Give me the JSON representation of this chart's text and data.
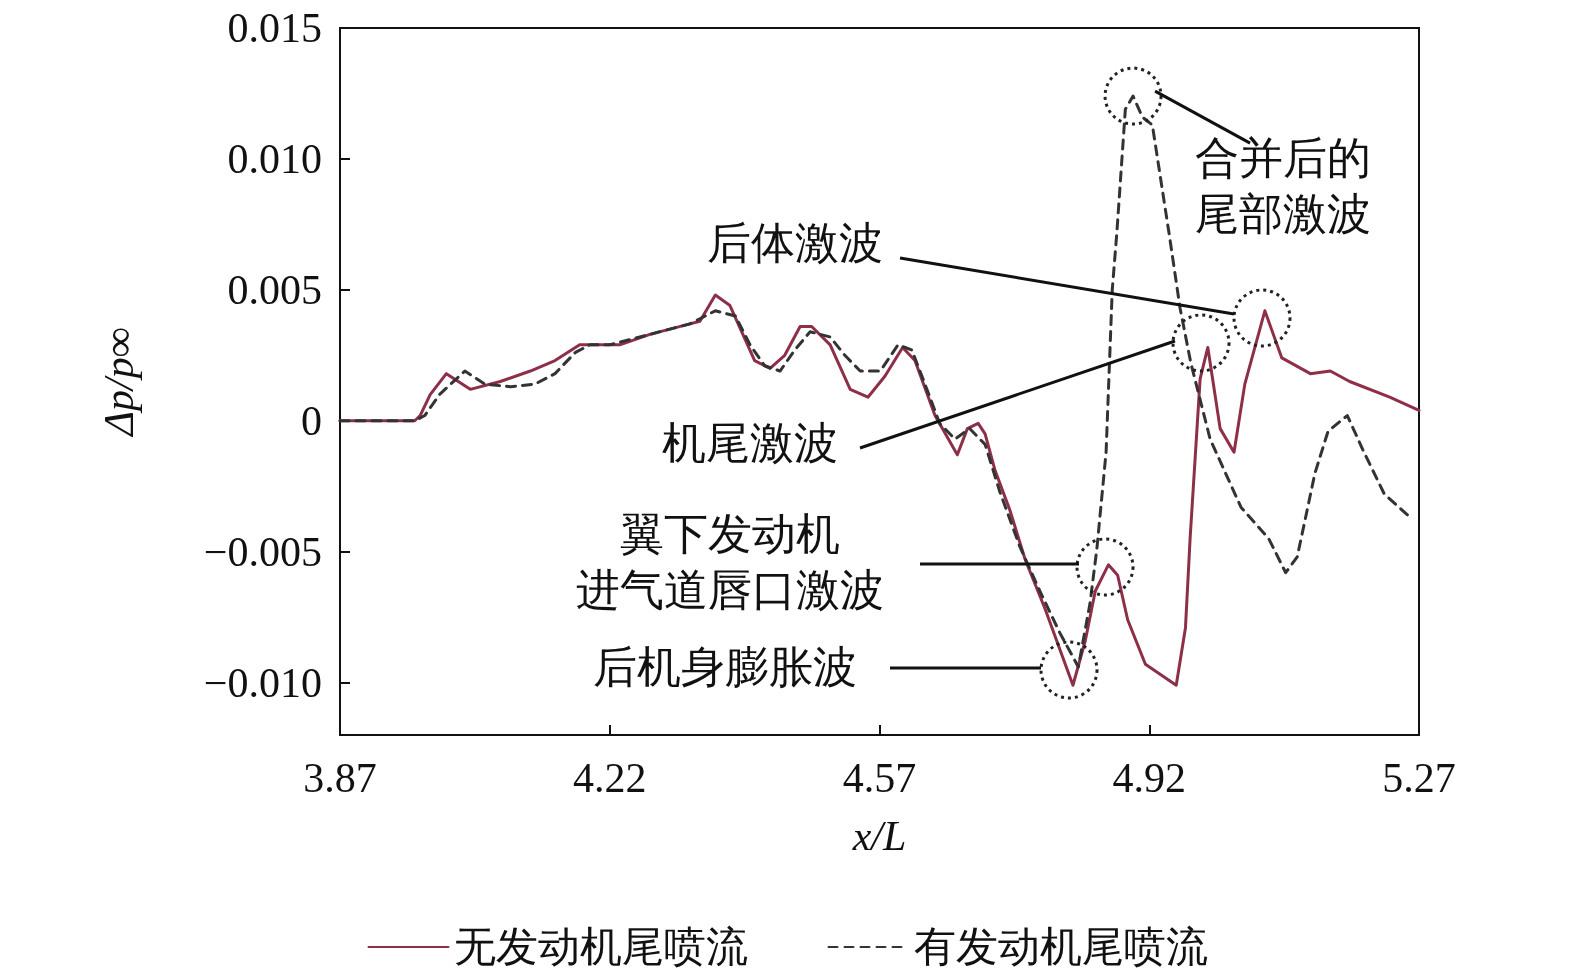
{
  "chart_data": {
    "type": "line",
    "xlabel": "x/L",
    "ylabel": "Δp/p∞",
    "xlim": [
      3.87,
      5.27
    ],
    "xticks": [
      3.87,
      4.22,
      4.57,
      4.92,
      5.27
    ],
    "ylim": [
      -0.012,
      0.015
    ],
    "yticks": [
      {
        "value": -0.01,
        "label": "−0.010"
      },
      {
        "value": -0.005,
        "label": "−0.005"
      },
      0,
      {
        "value": 0.005,
        "label": "0.005"
      },
      {
        "value": 0.01,
        "label": "0.010"
      },
      {
        "value": 0.015,
        "label": "0.015"
      }
    ],
    "grid": false,
    "legend": "bottom",
    "marker": "none",
    "series": [
      {
        "name": "无发动机尾喷流",
        "color": "#8e2f48",
        "line_style": "solid",
        "x": [
          3.87,
          3.967,
          3.974,
          3.987,
          4.008,
          4.039,
          4.078,
          4.117,
          4.149,
          4.181,
          4.205,
          4.233,
          4.272,
          4.324,
          4.337,
          4.357,
          4.376,
          4.408,
          4.428,
          4.447,
          4.467,
          4.482,
          4.506,
          4.532,
          4.555,
          4.577,
          4.6,
          4.616,
          4.642,
          4.671,
          4.684,
          4.698,
          4.707,
          4.72,
          4.739,
          4.759,
          4.785,
          4.821,
          4.837,
          4.85,
          4.867,
          4.879,
          4.892,
          4.915,
          4.955,
          4.967,
          4.973,
          4.986,
          4.996,
          5.012,
          5.03,
          5.044,
          5.07,
          5.092,
          5.129,
          5.155,
          5.18,
          5.232,
          5.27
        ],
        "values": [
          0,
          0,
          0.0002,
          0.001,
          0.0018,
          0.0012,
          0.0015,
          0.0019,
          0.0023,
          0.0029,
          0.0029,
          0.0029,
          0.0033,
          0.0037,
          0.0038,
          0.0048,
          0.0044,
          0.0023,
          0.002,
          0.0025,
          0.0036,
          0.0036,
          0.0029,
          0.0012,
          0.0009,
          0.0017,
          0.0028,
          0.0023,
          0.0002,
          -0.0013,
          -0.0003,
          -0.0001,
          -0.0005,
          -0.0019,
          -0.0034,
          -0.0053,
          -0.0072,
          -0.0101,
          -0.0084,
          -0.0065,
          -0.0055,
          -0.0059,
          -0.0076,
          -0.0093,
          -0.0101,
          -0.0079,
          -0.0045,
          0.0016,
          0.0028,
          -0.0003,
          -0.0012,
          0.0014,
          0.0042,
          0.0024,
          0.0018,
          0.0019,
          0.0015,
          0.0009,
          0.0004
        ]
      },
      {
        "name": "有发动机尾喷流",
        "color": "#333333",
        "line_style": "dashed",
        "x": [
          3.87,
          3.967,
          3.98,
          3.999,
          4.032,
          4.058,
          4.091,
          4.123,
          4.149,
          4.175,
          4.194,
          4.22,
          4.259,
          4.324,
          4.357,
          4.383,
          4.402,
          4.421,
          4.441,
          4.46,
          4.48,
          4.506,
          4.525,
          4.545,
          4.571,
          4.594,
          4.612,
          4.629,
          4.648,
          4.668,
          4.687,
          4.707,
          4.726,
          4.752,
          4.778,
          4.804,
          4.828,
          4.843,
          4.852,
          4.864,
          4.872,
          4.878,
          4.889,
          4.899,
          4.911,
          4.924,
          4.946,
          4.96,
          4.974,
          4.999,
          5.039,
          5.075,
          5.097,
          5.112,
          5.135,
          5.152,
          5.177,
          5.197,
          5.225,
          5.259
        ],
        "values": [
          0,
          0,
          0.0002,
          0.001,
          0.0019,
          0.0014,
          0.0013,
          0.0014,
          0.0018,
          0.0026,
          0.0029,
          0.0029,
          0.0032,
          0.0037,
          0.0042,
          0.004,
          0.0029,
          0.0021,
          0.0019,
          0.0027,
          0.0034,
          0.0032,
          0.0025,
          0.0019,
          0.0019,
          0.0029,
          0.0027,
          0.0014,
          -0.0001,
          -0.0007,
          -0.0003,
          -0.0009,
          -0.0027,
          -0.0048,
          -0.0065,
          -0.0081,
          -0.0094,
          -0.007,
          -0.0049,
          -0.0012,
          0.005,
          0.0072,
          0.0119,
          0.0124,
          0.0116,
          0.0113,
          0.0071,
          0.0043,
          0.0022,
          -0.0007,
          -0.0033,
          -0.0045,
          -0.0058,
          -0.0052,
          -0.002,
          -0.0004,
          0.0002,
          -0.0011,
          -0.0028,
          -0.0037
        ]
      }
    ],
    "annotations": [
      {
        "text": "合并后的尾部激波",
        "x": 4.899,
        "y": 0.0124
      },
      "后体激波",
      "机尾激波",
      "翼下发动机进气道唇口激波",
      "后机身膨胀波"
    ]
  }
}
